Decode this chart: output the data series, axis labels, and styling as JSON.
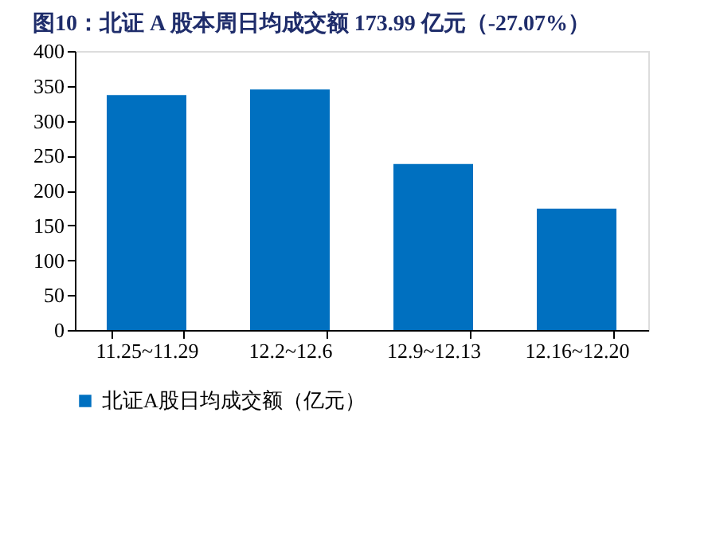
{
  "chart_data": {
    "type": "bar",
    "title": "图10：北证 A 股本周日均成交额 173.99 亿元（-27.07%）",
    "categories": [
      "11.25~11.29",
      "12.2~12.6",
      "12.9~12.13",
      "12.16~12.20"
    ],
    "series": [
      {
        "name": "北证A股日均成交额（亿元）",
        "color": "#0070c0",
        "values": [
          337,
          345,
          238,
          174
        ]
      }
    ],
    "ylim": [
      0,
      400
    ],
    "yticks": [
      0,
      50,
      100,
      150,
      200,
      250,
      300,
      350,
      400
    ],
    "grid": false,
    "legend": "bottom"
  }
}
